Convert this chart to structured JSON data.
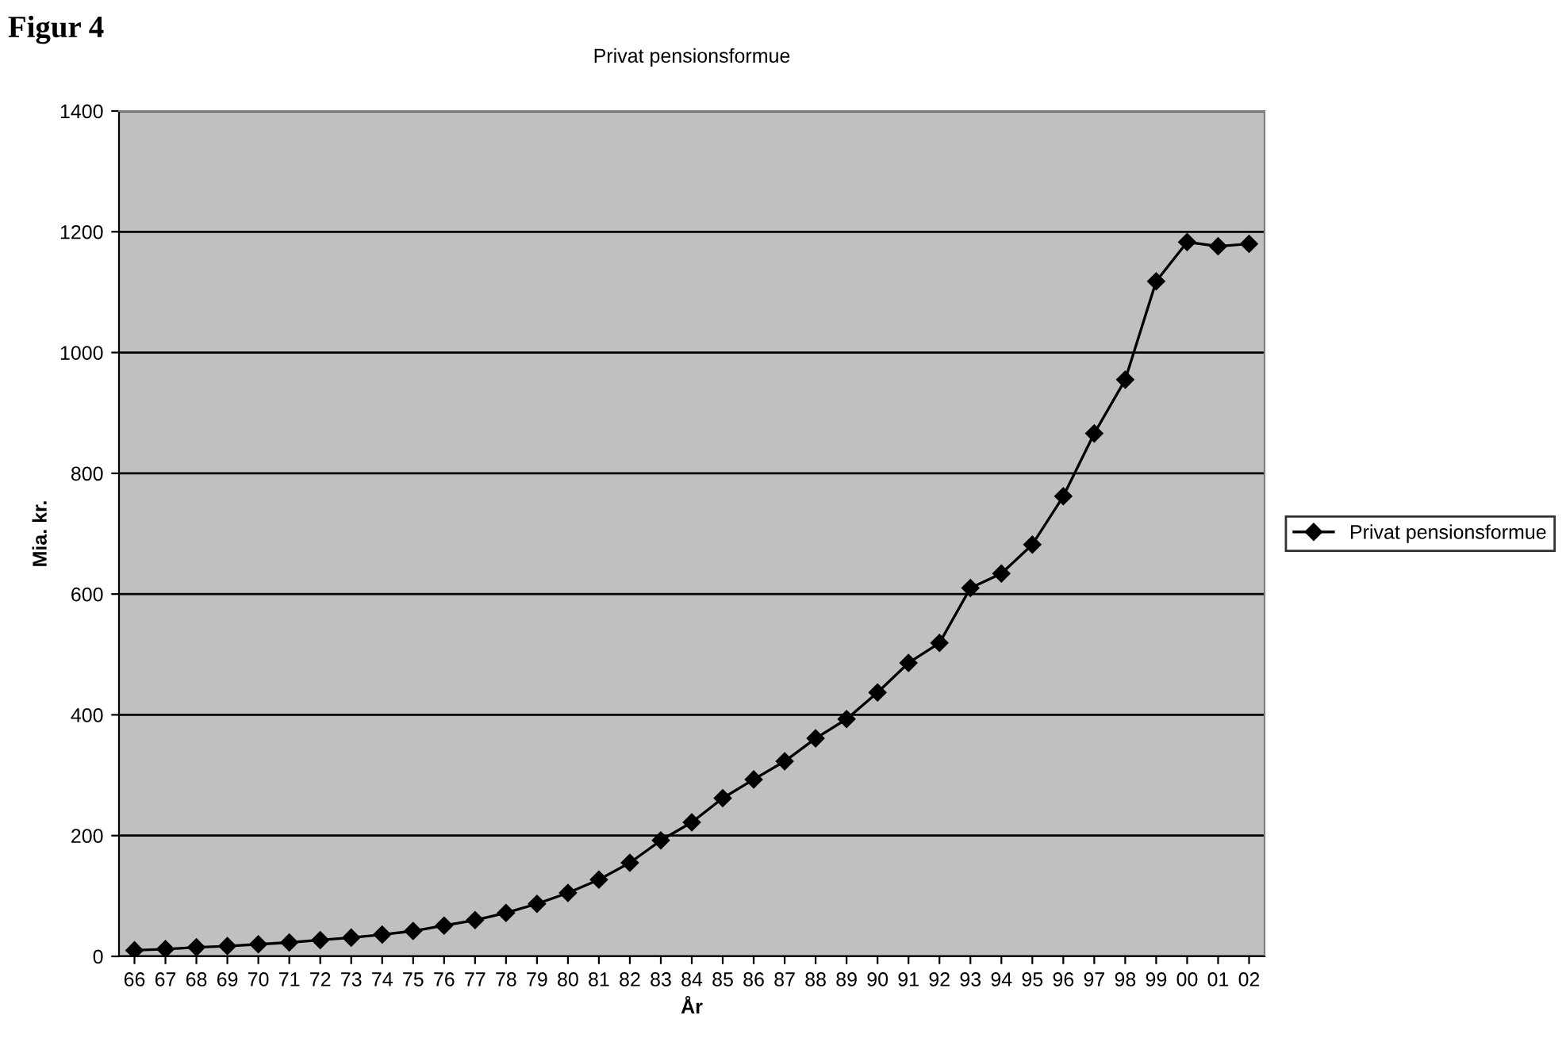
{
  "chart_data": {
    "type": "line",
    "title": "Privat pensionsformue",
    "xlabel": "År",
    "ylabel": "Mia. kr.",
    "annotations": [
      "Figur 4"
    ],
    "categories": [
      "66",
      "67",
      "68",
      "69",
      "70",
      "71",
      "72",
      "73",
      "74",
      "75",
      "76",
      "77",
      "78",
      "79",
      "80",
      "81",
      "82",
      "83",
      "84",
      "85",
      "86",
      "87",
      "88",
      "89",
      "90",
      "91",
      "92",
      "93",
      "94",
      "95",
      "96",
      "97",
      "98",
      "99",
      "00",
      "01",
      "02"
    ],
    "series": [
      {
        "name": "Privat pensionsformue",
        "color": "#000000",
        "values": [
          10,
          12,
          15,
          17,
          20,
          23,
          27,
          31,
          36,
          42,
          51,
          60,
          72,
          87,
          105,
          127,
          155,
          192,
          222,
          262,
          293,
          323,
          361,
          393,
          437,
          486,
          519,
          610,
          634,
          682,
          762,
          866,
          955,
          1118,
          1183,
          1176,
          1180
        ]
      }
    ],
    "ylim": [
      0,
      1400
    ],
    "yticks": [
      0,
      200,
      400,
      600,
      800,
      1000,
      1200,
      1400
    ],
    "grid": "y",
    "legend": "right",
    "marker": "diamond",
    "line_style": "solid"
  }
}
